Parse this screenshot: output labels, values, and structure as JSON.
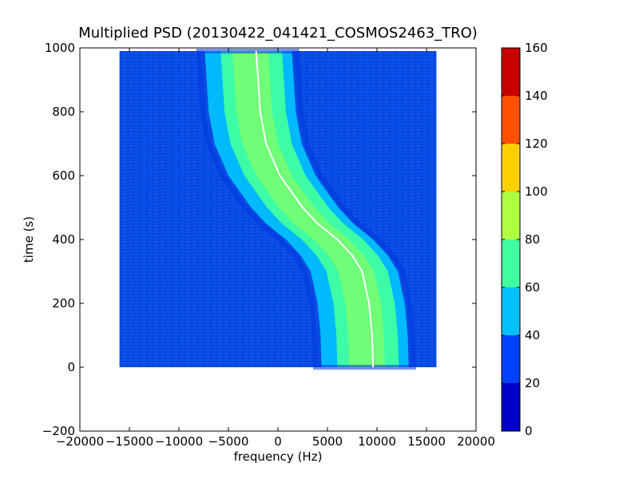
{
  "chart_data": {
    "type": "heatmap",
    "title": "Multiplied PSD (20130422_041421_COSMOS2463_TRO)",
    "xlabel": "frequency (Hz)",
    "ylabel": "time (s)",
    "xlim": [
      -20000,
      20000
    ],
    "ylim": [
      -200,
      1000
    ],
    "x_ticks": [
      -20000,
      -15000,
      -10000,
      -5000,
      0,
      5000,
      10000,
      15000,
      20000
    ],
    "x_tick_labels": [
      "−20000",
      "−15000",
      "−10000",
      "−5000",
      "0",
      "5000",
      "10000",
      "15000",
      "20000"
    ],
    "y_ticks": [
      -200,
      0,
      200,
      400,
      600,
      800,
      1000
    ],
    "y_tick_labels": [
      "−200",
      "0",
      "200",
      "400",
      "600",
      "800",
      "1000"
    ],
    "data_extent": {
      "x": [
        -16000,
        16000
      ],
      "y": [
        0,
        990
      ]
    },
    "grid": false,
    "colorbar": {
      "levels": [
        0,
        20,
        40,
        60,
        80,
        100,
        120,
        140,
        160
      ],
      "labels": [
        "0",
        "20",
        "40",
        "60",
        "80",
        "100",
        "120",
        "140",
        "160"
      ],
      "colors": [
        "#0000c8",
        "#0040ff",
        "#00c0ff",
        "#40ffa0",
        "#b0ff40",
        "#ffd000",
        "#ff5000",
        "#c80000"
      ]
    },
    "doppler_curve": {
      "description_points": [
        {
          "time": 990,
          "freq": -2200
        },
        {
          "time": 900,
          "freq": -2000
        },
        {
          "time": 800,
          "freq": -1800
        },
        {
          "time": 700,
          "freq": -1200
        },
        {
          "time": 600,
          "freq": 200
        },
        {
          "time": 500,
          "freq": 2500
        },
        {
          "time": 450,
          "freq": 4000
        },
        {
          "time": 400,
          "freq": 6000
        },
        {
          "time": 350,
          "freq": 7500
        },
        {
          "time": 300,
          "freq": 8500
        },
        {
          "time": 200,
          "freq": 9200
        },
        {
          "time": 100,
          "freq": 9500
        },
        {
          "time": 0,
          "freq": 9600
        }
      ]
    }
  }
}
